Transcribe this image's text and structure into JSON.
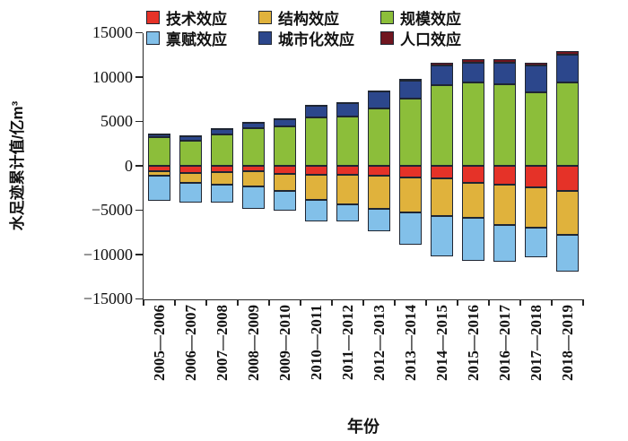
{
  "chart_data": {
    "type": "bar",
    "stacked": true,
    "orientation": "vertical",
    "title": "",
    "xlabel": "年份",
    "ylabel": "水足迹累计值/亿m³",
    "ylim": [
      -15000,
      15000
    ],
    "ytick_values": [
      15000,
      10000,
      5000,
      0,
      -5000,
      -10000,
      -15000
    ],
    "ytick_labels": [
      "15000",
      "10000",
      "5000",
      "0",
      "−5000",
      "−10000",
      "−15000"
    ],
    "grid": false,
    "legend_position": "top",
    "categories": [
      "2005—2006",
      "2006—2007",
      "2007—2008",
      "2008—2009",
      "2009—2010",
      "2010—2011",
      "2011—2012",
      "2012—2013",
      "2013—2014",
      "2014—2015",
      "2015—2016",
      "2016—2017",
      "2017—2018",
      "2018—2019"
    ],
    "series": [
      {
        "key": "technical-effect",
        "name": "技术效应",
        "color": "#e53228",
        "values": [
          -650,
          -800,
          -750,
          -650,
          -900,
          -1050,
          -1050,
          -1150,
          -1350,
          -1400,
          -1900,
          -2150,
          -2450,
          -2850
        ]
      },
      {
        "key": "structural-effect",
        "name": "结构效应",
        "color": "#e0b23c",
        "values": [
          -450,
          -1100,
          -1350,
          -1700,
          -1950,
          -2750,
          -3300,
          -3700,
          -3950,
          -4250,
          -4000,
          -4550,
          -4550,
          -4950
        ]
      },
      {
        "key": "scale-effect",
        "name": "规模效应",
        "color": "#8cbe3a",
        "values": [
          3200,
          2850,
          3500,
          4200,
          4400,
          5450,
          5600,
          6450,
          7550,
          9100,
          9350,
          9150,
          8250,
          9400
        ]
      },
      {
        "key": "endowment-effect",
        "name": "禀赋效应",
        "color": "#82c0e9",
        "values": [
          -2800,
          -2200,
          -2000,
          -2500,
          -2200,
          -2450,
          -1950,
          -2500,
          -3550,
          -4600,
          -4800,
          -4100,
          -3300,
          -4100
        ]
      },
      {
        "key": "urbanization-effect",
        "name": "城市化效应",
        "color": "#2c478c",
        "values": [
          350,
          500,
          650,
          700,
          900,
          1350,
          1450,
          1950,
          2050,
          2200,
          2300,
          2450,
          3050,
          3100
        ]
      },
      {
        "key": "population-effect",
        "name": "人口效应",
        "color": "#701620",
        "values": [
          50,
          50,
          50,
          50,
          100,
          100,
          100,
          100,
          200,
          300,
          400,
          450,
          350,
          400
        ]
      }
    ],
    "colors": {
      "axis": "#262626",
      "bar_border": "#1f2633",
      "background": "#ffffff",
      "text": "#111111"
    }
  }
}
